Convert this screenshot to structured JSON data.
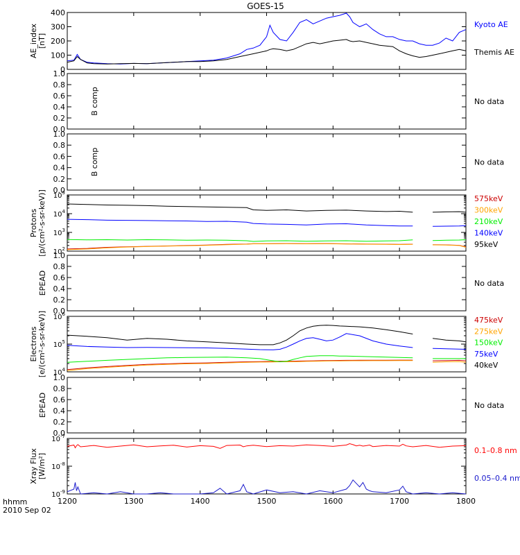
{
  "title": "GOES-15",
  "colors": {
    "black": "#000000",
    "blue": "#0000ff",
    "red": "#ff0000",
    "orange": "#ffa500",
    "green": "#00ee00",
    "darkred": "#cc0000",
    "navy": "#1a1acc"
  },
  "footer": {
    "label_hhmm": "hhmm",
    "label_date": "2010 Sep 02"
  },
  "chart_data": [
    {
      "id": "ae",
      "type": "line",
      "ylabel": [
        "AE_index",
        "[nT]"
      ],
      "ylim": [
        0,
        400
      ],
      "yticks": [
        0,
        100,
        200,
        300,
        400
      ],
      "scale": "linear",
      "x": [
        1200,
        1210,
        1215,
        1220,
        1230,
        1240,
        1260,
        1280,
        1300,
        1320,
        1340,
        1360,
        1380,
        1400,
        1420,
        1440,
        1460,
        1470,
        1480,
        1490,
        1500,
        1505,
        1510,
        1520,
        1530,
        1540,
        1550,
        1560,
        1570,
        1580,
        1590,
        1600,
        1610,
        1620,
        1625,
        1630,
        1640,
        1650,
        1660,
        1670,
        1680,
        1690,
        1700,
        1710,
        1720,
        1730,
        1740,
        1750,
        1760,
        1770,
        1780,
        1790,
        1800
      ],
      "series": [
        {
          "name": "Kyoto AE",
          "color": "blue",
          "values": [
            60,
            65,
            105,
            70,
            50,
            45,
            40,
            38,
            42,
            40,
            45,
            50,
            55,
            60,
            65,
            80,
            110,
            140,
            150,
            170,
            230,
            310,
            260,
            210,
            200,
            260,
            330,
            350,
            320,
            340,
            360,
            370,
            380,
            395,
            370,
            330,
            300,
            320,
            280,
            250,
            230,
            230,
            210,
            200,
            200,
            180,
            170,
            170,
            185,
            220,
            200,
            260,
            280
          ]
        },
        {
          "name": "Themis AE",
          "color": "black",
          "values": [
            50,
            60,
            90,
            70,
            45,
            40,
            38,
            40,
            42,
            40,
            45,
            50,
            55,
            55,
            60,
            70,
            90,
            100,
            110,
            120,
            130,
            140,
            145,
            140,
            130,
            140,
            160,
            180,
            190,
            180,
            190,
            200,
            205,
            210,
            200,
            195,
            200,
            190,
            180,
            170,
            165,
            160,
            130,
            110,
            95,
            85,
            90,
            100,
            110,
            120,
            130,
            140,
            130
          ]
        }
      ]
    },
    {
      "id": "b1",
      "type": "line",
      "ylabel": [
        "B comp"
      ],
      "ylim": [
        0,
        1
      ],
      "yticks": [
        0.0,
        0.2,
        0.4,
        0.6,
        0.8,
        1.0
      ],
      "scale": "linear",
      "note": "No data",
      "series": []
    },
    {
      "id": "b2",
      "type": "line",
      "ylabel": [
        "B comp"
      ],
      "ylim": [
        0,
        1
      ],
      "yticks": [
        0.0,
        0.2,
        0.4,
        0.6,
        0.8,
        1.0
      ],
      "scale": "linear",
      "note": "No data",
      "series": []
    },
    {
      "id": "protons",
      "type": "line",
      "ylabel": [
        "Protons",
        "[p/(cm²-s-sr-keV)]"
      ],
      "ylim": [
        100,
        100000
      ],
      "scale": "log",
      "x": [
        1200,
        1230,
        1260,
        1290,
        1320,
        1350,
        1380,
        1410,
        1440,
        1470,
        1480,
        1500,
        1530,
        1560,
        1590,
        1620,
        1650,
        1680,
        1700,
        1720,
        1730,
        1740,
        1750,
        1770,
        1790,
        1800
      ],
      "gap": [
        1727,
        1745
      ],
      "series": [
        {
          "name": "575keV",
          "color": "darkred",
          "values": [
            130,
            140,
            160,
            170,
            180,
            190,
            200,
            210,
            230,
            240,
            250,
            250,
            255,
            250,
            255,
            245,
            240,
            235,
            230,
            235,
            null,
            null,
            220,
            215,
            205,
            170
          ]
        },
        {
          "name": "300keV",
          "color": "orange",
          "values": [
            120,
            130,
            150,
            165,
            175,
            185,
            195,
            205,
            220,
            235,
            245,
            245,
            250,
            245,
            250,
            240,
            235,
            230,
            225,
            230,
            null,
            null,
            215,
            210,
            200,
            160
          ]
        },
        {
          "name": "210keV",
          "color": "green",
          "values": [
            420,
            400,
            410,
            390,
            410,
            400,
            380,
            390,
            380,
            360,
            330,
            350,
            360,
            340,
            350,
            360,
            340,
            350,
            360,
            400,
            null,
            null,
            370,
            380,
            390,
            410
          ]
        },
        {
          "name": "140keV",
          "color": "blue",
          "values": [
            5000,
            4800,
            4500,
            4400,
            4300,
            4200,
            4100,
            3800,
            3900,
            3500,
            3000,
            2800,
            2700,
            2500,
            2800,
            2900,
            2500,
            2300,
            2200,
            2200,
            null,
            null,
            2100,
            2150,
            2200,
            2300
          ]
        },
        {
          "name": "95keV",
          "color": "black",
          "values": [
            33000,
            31000,
            29000,
            28000,
            27000,
            25000,
            24000,
            23000,
            22000,
            21000,
            16000,
            15000,
            16000,
            14000,
            15000,
            15500,
            14000,
            13000,
            13500,
            12000,
            null,
            null,
            12000,
            12500,
            12800,
            12000
          ]
        }
      ]
    },
    {
      "id": "epead1",
      "type": "line",
      "ylabel": [
        "EPEAD"
      ],
      "ylim": [
        0,
        1
      ],
      "yticks": [
        0.0,
        0.2,
        0.4,
        0.6,
        0.8,
        1.0
      ],
      "scale": "linear",
      "note": "No data",
      "series": []
    },
    {
      "id": "electrons",
      "type": "line",
      "ylabel": [
        "Electrons",
        "[e/(cm²-s-sr-keV)]"
      ],
      "ylim": [
        10000,
        1000000
      ],
      "scale": "log",
      "x": [
        1200,
        1230,
        1260,
        1290,
        1320,
        1350,
        1380,
        1410,
        1440,
        1470,
        1490,
        1510,
        1520,
        1530,
        1540,
        1550,
        1560,
        1570,
        1580,
        1590,
        1600,
        1610,
        1620,
        1640,
        1660,
        1680,
        1700,
        1720,
        1730,
        1740,
        1750,
        1770,
        1790,
        1800
      ],
      "gap": [
        1727,
        1745
      ],
      "series": [
        {
          "name": "475keV",
          "color": "darkred",
          "values": [
            12000,
            14000,
            15500,
            17000,
            18500,
            19500,
            20500,
            21000,
            22000,
            23000,
            23500,
            23800,
            24000,
            24000,
            24200,
            24500,
            24800,
            25000,
            25200,
            25500,
            25700,
            25800,
            26000,
            26100,
            26200,
            26300,
            26400,
            26500,
            null,
            null,
            25000,
            25500,
            26000,
            25000
          ]
        },
        {
          "name": "275keV",
          "color": "orange",
          "values": [
            11000,
            13000,
            14500,
            16000,
            17500,
            18500,
            19500,
            20000,
            21000,
            22000,
            22500,
            22800,
            23000,
            23000,
            23200,
            23500,
            23800,
            24000,
            24200,
            24500,
            24700,
            24800,
            25000,
            25100,
            25200,
            25300,
            25400,
            25500,
            null,
            null,
            22000,
            23000,
            23500,
            22000
          ]
        },
        {
          "name": "150keV",
          "color": "green",
          "values": [
            22000,
            24000,
            26000,
            28000,
            30000,
            32000,
            33000,
            33500,
            34000,
            32000,
            30000,
            25000,
            23000,
            24000,
            28000,
            32000,
            36000,
            37000,
            38000,
            38000,
            38000,
            37000,
            37000,
            36000,
            35000,
            34000,
            33000,
            32000,
            null,
            null,
            30000,
            30000,
            30000,
            30000
          ]
        },
        {
          "name": "75keV",
          "color": "blue",
          "values": [
            90000,
            82000,
            78000,
            75000,
            76000,
            75000,
            74000,
            73000,
            70000,
            66000,
            63000,
            62000,
            65000,
            78000,
            100000,
            130000,
            160000,
            170000,
            150000,
            130000,
            140000,
            180000,
            240000,
            200000,
            130000,
            100000,
            85000,
            75000,
            null,
            null,
            70000,
            68000,
            66000,
            65000
          ]
        },
        {
          "name": "40keV",
          "color": "black",
          "values": [
            210000,
            190000,
            170000,
            140000,
            160000,
            150000,
            130000,
            120000,
            110000,
            100000,
            95000,
            95000,
            110000,
            140000,
            200000,
            300000,
            380000,
            440000,
            470000,
            480000,
            470000,
            450000,
            440000,
            420000,
            380000,
            330000,
            280000,
            230000,
            null,
            null,
            160000,
            140000,
            130000,
            120000
          ]
        }
      ]
    },
    {
      "id": "epead2",
      "type": "line",
      "ylabel": [
        "EPEAD"
      ],
      "ylim": [
        0,
        1
      ],
      "yticks": [
        0.0,
        0.2,
        0.4,
        0.6,
        0.8,
        1.0
      ],
      "scale": "linear",
      "note": "No data",
      "series": []
    },
    {
      "id": "xray",
      "type": "line",
      "ylabel": [
        "Xray Flux",
        "[W/m²]"
      ],
      "ylim": [
        1e-09,
        1e-07
      ],
      "scale": "log",
      "x": [
        1200,
        1210,
        1212,
        1214,
        1216,
        1220,
        1240,
        1260,
        1280,
        1300,
        1320,
        1340,
        1360,
        1380,
        1400,
        1420,
        1430,
        1440,
        1460,
        1465,
        1470,
        1480,
        1500,
        1520,
        1540,
        1560,
        1580,
        1600,
        1620,
        1625,
        1630,
        1635,
        1640,
        1645,
        1650,
        1655,
        1660,
        1680,
        1700,
        1705,
        1710,
        1720,
        1740,
        1760,
        1780,
        1800
      ],
      "series": [
        {
          "name": "0.1–0.8 nm",
          "color": "red",
          "values": [
            5.2e-08,
            5.8e-08,
            4.6e-08,
            5.5e-08,
            6e-08,
            5e-08,
            5.6e-08,
            4.8e-08,
            5.3e-08,
            5.9e-08,
            5e-08,
            5.4e-08,
            5.7e-08,
            4.9e-08,
            5.5e-08,
            5.2e-08,
            4.4e-08,
            5.6e-08,
            5.8e-08,
            5e-08,
            5.4e-08,
            5.7e-08,
            5.1e-08,
            5.5e-08,
            5.3e-08,
            5.9e-08,
            5.6e-08,
            5.2e-08,
            5.8e-08,
            6.5e-08,
            6e-08,
            5.4e-08,
            5.7e-08,
            5.3e-08,
            5.5e-08,
            5.8e-08,
            5.1e-08,
            5.6e-08,
            5.3e-08,
            6.2e-08,
            5.4e-08,
            5e-08,
            5.6e-08,
            4.8e-08,
            5.3e-08,
            5.5e-08
          ]
        },
        {
          "name": "0.05–0.4 nm",
          "color": "navy",
          "values": [
            1.2e-09,
            1.5e-09,
            2.6e-09,
            1.3e-09,
            1.8e-09,
            1e-09,
            1.1e-09,
            1e-09,
            1.2e-09,
            1e-09,
            1e-09,
            1.1e-09,
            1e-09,
            1e-09,
            1e-09,
            1.1e-09,
            1.6e-09,
            1e-09,
            1.3e-09,
            2.2e-09,
            1.2e-09,
            1e-09,
            1.4e-09,
            1.1e-09,
            1.2e-09,
            1e-09,
            1.3e-09,
            1.1e-09,
            1.5e-09,
            2e-09,
            3.2e-09,
            2.4e-09,
            1.8e-09,
            2.6e-09,
            1.5e-09,
            1.3e-09,
            1.2e-09,
            1.1e-09,
            1.4e-09,
            1.9e-09,
            1.2e-09,
            1e-09,
            1.1e-09,
            1e-09,
            1.1e-09,
            1e-09
          ]
        }
      ]
    }
  ],
  "xaxis": {
    "xlim": [
      1200,
      1800
    ],
    "ticks": [
      1200,
      1300,
      1400,
      1500,
      1600,
      1700,
      1800
    ]
  }
}
